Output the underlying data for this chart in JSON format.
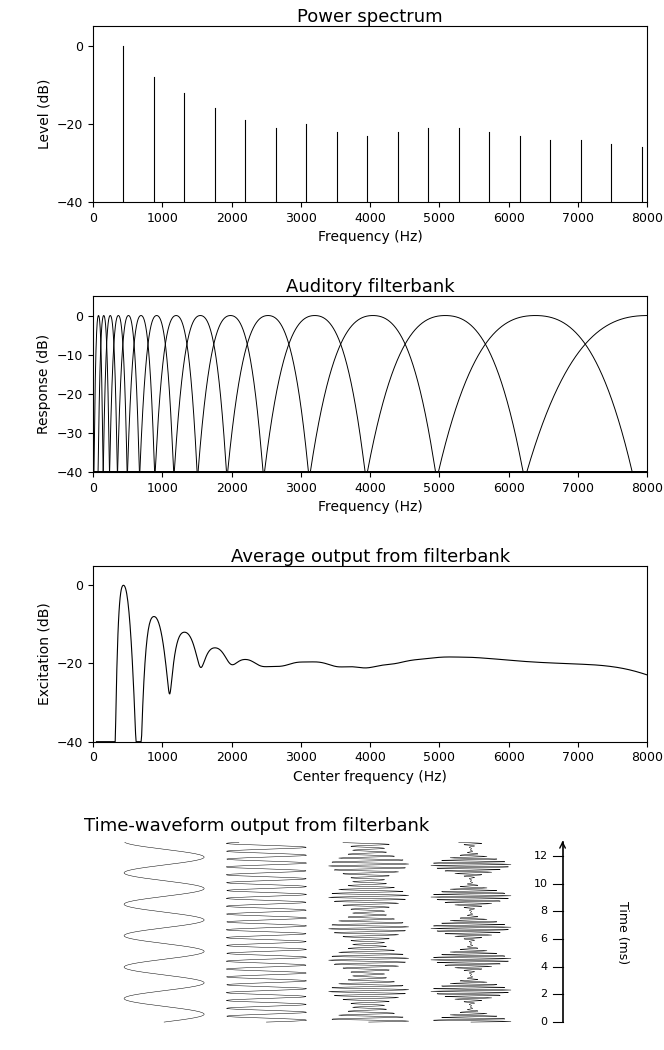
{
  "title1": "Power spectrum",
  "title2": "Auditory filterbank",
  "title3": "Average output from filterbank",
  "title4": "Time-waveform output from filterbank",
  "f0": 440,
  "n_harmonics": 18,
  "spectrum_ylim": [
    -40,
    5
  ],
  "spectrum_yticks": [
    -40,
    -20,
    0
  ],
  "spectrum_xlim": [
    0,
    8000
  ],
  "spectrum_xticks": [
    0,
    1000,
    2000,
    3000,
    4000,
    5000,
    6000,
    7000,
    8000
  ],
  "filterbank_ylim": [
    -40,
    5
  ],
  "filterbank_yticks": [
    -40,
    -30,
    -20,
    -10,
    0
  ],
  "filterbank_xlim": [
    0,
    8000
  ],
  "excitation_ylim": [
    -40,
    5
  ],
  "excitation_yticks": [
    -40,
    -20,
    0
  ],
  "excitation_xlim": [
    0,
    8000
  ],
  "n_filters": 16,
  "waveform_filters": [
    440,
    1760,
    3520,
    5280
  ],
  "waveform_duration_ms": 13,
  "bg_color": "#ffffff",
  "line_color": "#000000",
  "ylabel1": "Level (dB)",
  "ylabel2": "Response (dB)",
  "ylabel3": "Excitation (dB)",
  "xlabel1": "Frequency (Hz)",
  "xlabel2": "Frequency (Hz)",
  "xlabel3": "Center frequency (Hz)",
  "time_axis_label": "Time (ms)",
  "time_ticks": [
    0,
    2,
    4,
    6,
    8,
    10,
    12
  ],
  "harmonic_levels": [
    0,
    -8,
    -12,
    -16,
    -19,
    -21,
    -20,
    -22,
    -23,
    -22,
    -21,
    -21,
    -22,
    -23,
    -24,
    -24,
    -25,
    -26
  ],
  "title_fontsize": 13,
  "label_fontsize": 10,
  "tick_fontsize": 9
}
